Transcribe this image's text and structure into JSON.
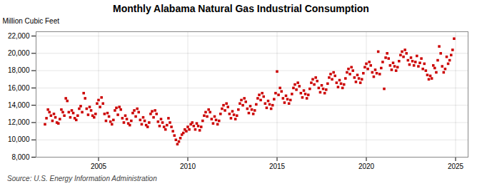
{
  "chart_data": {
    "type": "scatter",
    "title": "Monthly Alabama Natural Gas Industrial Consumption",
    "ylabel": "Million Cubic Feet",
    "source": "Source: U.S. Energy Information Administration",
    "color": "#cc0000",
    "marker": "square",
    "grid": true,
    "xlim": [
      2001.5,
      2025.7
    ],
    "xticks": [
      2005,
      2010,
      2015,
      2020,
      2025
    ],
    "ylim": [
      8000,
      22500
    ],
    "yticks": [
      {
        "value": 8000,
        "label": "8,000"
      },
      {
        "value": 10000,
        "label": "10,000"
      },
      {
        "value": 12000,
        "label": "12,000"
      },
      {
        "value": 14000,
        "label": "14,000"
      },
      {
        "value": 16000,
        "label": "16,000"
      },
      {
        "value": 18000,
        "label": "18,000"
      },
      {
        "value": 20000,
        "label": "20,000"
      },
      {
        "value": 22000,
        "label": "22,000"
      }
    ],
    "x": [
      2002.0,
      2002.083,
      2002.167,
      2002.25,
      2002.333,
      2002.417,
      2002.5,
      2002.583,
      2002.667,
      2002.75,
      2002.833,
      2002.917,
      2003.0,
      2003.083,
      2003.167,
      2003.25,
      2003.333,
      2003.417,
      2003.5,
      2003.583,
      2003.667,
      2003.75,
      2003.833,
      2003.917,
      2004.0,
      2004.083,
      2004.167,
      2004.25,
      2004.333,
      2004.417,
      2004.5,
      2004.583,
      2004.667,
      2004.75,
      2004.833,
      2004.917,
      2005.0,
      2005.083,
      2005.167,
      2005.25,
      2005.333,
      2005.417,
      2005.5,
      2005.583,
      2005.667,
      2005.75,
      2005.833,
      2005.917,
      2006.0,
      2006.083,
      2006.167,
      2006.25,
      2006.333,
      2006.417,
      2006.5,
      2006.583,
      2006.667,
      2006.75,
      2006.833,
      2006.917,
      2007.0,
      2007.083,
      2007.167,
      2007.25,
      2007.333,
      2007.417,
      2007.5,
      2007.583,
      2007.667,
      2007.75,
      2007.833,
      2007.917,
      2008.0,
      2008.083,
      2008.167,
      2008.25,
      2008.333,
      2008.417,
      2008.5,
      2008.583,
      2008.667,
      2008.75,
      2008.833,
      2008.917,
      2009.0,
      2009.083,
      2009.167,
      2009.25,
      2009.333,
      2009.417,
      2009.5,
      2009.583,
      2009.667,
      2009.75,
      2009.833,
      2009.917,
      2010.0,
      2010.083,
      2010.167,
      2010.25,
      2010.333,
      2010.417,
      2010.5,
      2010.583,
      2010.667,
      2010.75,
      2010.833,
      2010.917,
      2011.0,
      2011.083,
      2011.167,
      2011.25,
      2011.333,
      2011.417,
      2011.5,
      2011.583,
      2011.667,
      2011.75,
      2011.833,
      2011.917,
      2012.0,
      2012.083,
      2012.167,
      2012.25,
      2012.333,
      2012.417,
      2012.5,
      2012.583,
      2012.667,
      2012.75,
      2012.833,
      2012.917,
      2013.0,
      2013.083,
      2013.167,
      2013.25,
      2013.333,
      2013.417,
      2013.5,
      2013.583,
      2013.667,
      2013.75,
      2013.833,
      2013.917,
      2014.0,
      2014.083,
      2014.167,
      2014.25,
      2014.333,
      2014.417,
      2014.5,
      2014.583,
      2014.667,
      2014.75,
      2014.833,
      2014.917,
      2015.0,
      2015.083,
      2015.167,
      2015.25,
      2015.333,
      2015.417,
      2015.5,
      2015.583,
      2015.667,
      2015.75,
      2015.833,
      2015.917,
      2016.0,
      2016.083,
      2016.167,
      2016.25,
      2016.333,
      2016.417,
      2016.5,
      2016.583,
      2016.667,
      2016.75,
      2016.833,
      2016.917,
      2017.0,
      2017.083,
      2017.167,
      2017.25,
      2017.333,
      2017.417,
      2017.5,
      2017.583,
      2017.667,
      2017.75,
      2017.833,
      2017.917,
      2018.0,
      2018.083,
      2018.167,
      2018.25,
      2018.333,
      2018.417,
      2018.5,
      2018.583,
      2018.667,
      2018.75,
      2018.833,
      2018.917,
      2019.0,
      2019.083,
      2019.167,
      2019.25,
      2019.333,
      2019.417,
      2019.5,
      2019.583,
      2019.667,
      2019.75,
      2019.833,
      2019.917,
      2020.0,
      2020.083,
      2020.167,
      2020.25,
      2020.333,
      2020.417,
      2020.5,
      2020.583,
      2020.667,
      2020.75,
      2020.833,
      2020.917,
      2021.0,
      2021.083,
      2021.167,
      2021.25,
      2021.333,
      2021.417,
      2021.5,
      2021.583,
      2021.667,
      2021.75,
      2021.833,
      2021.917,
      2022.0,
      2022.083,
      2022.167,
      2022.25,
      2022.333,
      2022.417,
      2022.5,
      2022.583,
      2022.667,
      2022.75,
      2022.833,
      2022.917,
      2023.0,
      2023.083,
      2023.167,
      2023.25,
      2023.333,
      2023.417,
      2023.5,
      2023.583,
      2023.667,
      2023.75,
      2023.833,
      2023.917,
      2024.0,
      2024.083,
      2024.167,
      2024.25,
      2024.333,
      2024.417,
      2024.5,
      2024.583,
      2024.667,
      2024.75,
      2024.833,
      2024.917
    ],
    "values": [
      11800,
      12500,
      13500,
      13200,
      12800,
      12200,
      13000,
      12600,
      12000,
      11900,
      12400,
      13500,
      13200,
      12800,
      14800,
      14500,
      13200,
      12600,
      13400,
      13100,
      12500,
      12300,
      12800,
      13600,
      13900,
      13200,
      15400,
      14800,
      13600,
      12900,
      13800,
      13400,
      12800,
      12600,
      13000,
      14200,
      14600,
      13800,
      14900,
      14200,
      13000,
      12200,
      13100,
      12700,
      12100,
      11800,
      12300,
      13400,
      13700,
      12900,
      13800,
      13500,
      12500,
      12000,
      12800,
      12400,
      11900,
      11700,
      12200,
      13100,
      13400,
      12700,
      13600,
      13200,
      12300,
      11800,
      12600,
      12200,
      11700,
      11500,
      12000,
      13000,
      13300,
      12600,
      13400,
      13000,
      12100,
      11600,
      12400,
      12000,
      11500,
      11200,
      11700,
      12500,
      12000,
      11500,
      11000,
      10500,
      10000,
      9500,
      9800,
      10200,
      10600,
      10800,
      11200,
      11000,
      11500,
      11200,
      11800,
      12000,
      11600,
      11200,
      11900,
      11600,
      11100,
      11500,
      12200,
      12800,
      13200,
      12700,
      13500,
      13200,
      12400,
      11900,
      12700,
      12300,
      11800,
      12200,
      13000,
      13600,
      14000,
      13400,
      14200,
      13800,
      13000,
      12500,
      13300,
      12900,
      12400,
      12800,
      13500,
      14200,
      14600,
      14000,
      14800,
      14400,
      13600,
      13100,
      13900,
      13500,
      13000,
      13400,
      14100,
      14800,
      15200,
      14600,
      15400,
      15000,
      14200,
      13700,
      14500,
      14100,
      13600,
      14000,
      14700,
      15400,
      17900,
      15200,
      16000,
      15600,
      14800,
      14300,
      15100,
      14700,
      14200,
      14600,
      15300,
      16000,
      16400,
      15800,
      16600,
      16200,
      15400,
      14900,
      15700,
      15300,
      14800,
      15200,
      15900,
      16600,
      17000,
      16400,
      17200,
      16800,
      16000,
      15500,
      16300,
      15900,
      15400,
      15800,
      16500,
      17200,
      17600,
      17000,
      17800,
      17400,
      16600,
      16100,
      16900,
      16500,
      16000,
      16400,
      17100,
      17800,
      18200,
      17600,
      18400,
      18000,
      17200,
      16700,
      17500,
      17100,
      16600,
      17000,
      17700,
      18400,
      18800,
      18200,
      19000,
      18600,
      17800,
      17300,
      18100,
      17700,
      20200,
      17600,
      18300,
      19000,
      15900,
      19500,
      20000,
      19400,
      18600,
      18100,
      18900,
      18500,
      18000,
      18400,
      19100,
      19800,
      20200,
      19600,
      20400,
      20000,
      19200,
      18700,
      19500,
      19100,
      18600,
      19000,
      19700,
      18500,
      18900,
      19400,
      18200,
      18800,
      18000,
      17500,
      17000,
      17400,
      17100,
      18600,
      18300,
      17800,
      19200,
      20800,
      20000,
      18500,
      17800,
      18200,
      19600,
      18800,
      19200,
      19800,
      20400,
      21700
    ]
  }
}
